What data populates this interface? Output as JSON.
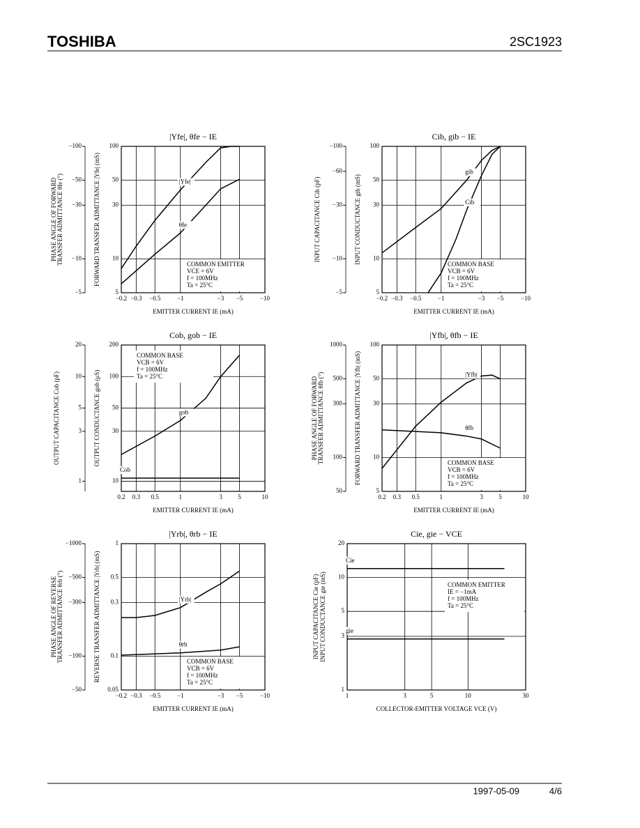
{
  "header": {
    "brand": "TOSHIBA",
    "part": "2SC1923"
  },
  "footer": {
    "date": "1997-05-09",
    "page": "4/6"
  },
  "chart_data": [
    {
      "type": "line",
      "title": "|Yfe|, θfe − IE",
      "xlabel": "EMITTER CURRENT IE (mA)",
      "ylabel": [
        "FORWARD TRANSFER ADMITTANCE |Yfe| (mS)"
      ],
      "y2label": [
        "PHASE ANGLE OF FORWARD",
        "TRANSFER ADMITTANCE θfe (°)"
      ],
      "log": true,
      "grid": true,
      "xlim": [
        -0.2,
        -10
      ],
      "xticks": [
        {
          "value": -0.2,
          "label": "−0.2"
        },
        {
          "value": -0.3,
          "label": "−0.3"
        },
        {
          "value": -0.5,
          "label": "−0.5"
        },
        {
          "value": -1,
          "label": "−1"
        },
        {
          "value": -3,
          "label": "−3"
        },
        {
          "value": -5,
          "label": "−5"
        },
        {
          "value": -10,
          "label": "−10"
        }
      ],
      "ylim": [
        5,
        100
      ],
      "yticks": [
        5,
        10,
        30,
        50,
        100
      ],
      "y2lim": [
        -5,
        -100
      ],
      "y2ticks": [
        {
          "value": -5,
          "label": "−5"
        },
        {
          "value": -10,
          "label": "−10"
        },
        {
          "value": -30,
          "label": "−30"
        },
        {
          "value": -50,
          "label": "−50"
        },
        {
          "value": -100,
          "label": "−100"
        }
      ],
      "notes": [
        "COMMON EMITTER",
        "VCE = 6V",
        "f = 100MHz",
        "Ta = 25°C"
      ],
      "series": [
        {
          "name": "|Yfe|",
          "color": "#000000",
          "x": [
            -0.2,
            -0.3,
            -0.5,
            -1,
            -2,
            -3,
            -4,
            -5
          ],
          "values": [
            8.2,
            13,
            22,
            41,
            72,
            97,
            100,
            100
          ]
        },
        {
          "name": "θfe",
          "color": "#000000",
          "axis": "y2",
          "x": [
            -0.2,
            -0.5,
            -1,
            -2,
            -3,
            -5
          ],
          "values": [
            -6,
            -11,
            -17,
            -30,
            -42,
            -51
          ]
        }
      ]
    },
    {
      "type": "line",
      "title": "Cib, gib − IE",
      "xlabel": "EMITTER CURRENT IE (mA)",
      "ylabel": [
        "INPUT CONDUCTANCE gib (mS)"
      ],
      "y2label": [
        "INPUT CAPACITANCE Cib (pF)"
      ],
      "log": true,
      "grid": true,
      "xlim": [
        -0.2,
        -10
      ],
      "xticks": [
        {
          "value": -0.2,
          "label": "−0.2"
        },
        {
          "value": -0.3,
          "label": "−0.3"
        },
        {
          "value": -0.5,
          "label": "−0.5"
        },
        {
          "value": -1,
          "label": "−1"
        },
        {
          "value": -3,
          "label": "−3"
        },
        {
          "value": -5,
          "label": "−5"
        },
        {
          "value": -10,
          "label": "−10"
        }
      ],
      "ylim": [
        5,
        100
      ],
      "yticks": [
        5,
        10,
        30,
        50,
        100
      ],
      "y2lim": [
        -5,
        -100
      ],
      "y2ticks": [
        {
          "value": -5,
          "label": "−5"
        },
        {
          "value": -10,
          "label": "−10"
        },
        {
          "value": -30,
          "label": "−30"
        },
        {
          "value": -60,
          "label": "−60"
        },
        {
          "value": -100,
          "label": "−100"
        }
      ],
      "notes": [
        "COMMON BASE",
        "VCB = 6V",
        "f = 100MHz",
        "Ta = 25°C"
      ],
      "series": [
        {
          "name": "gib",
          "color": "#000000",
          "x": [
            -0.2,
            -0.5,
            -1,
            -2,
            -3,
            -4,
            -5
          ],
          "values": [
            11.3,
            19,
            28,
            50,
            75,
            92,
            100
          ]
        },
        {
          "name": "Cib",
          "color": "#000000",
          "axis": "y2",
          "x": [
            -0.7,
            -1,
            -1.5,
            -2,
            -3,
            -4,
            -5
          ],
          "values": [
            -5,
            -7.5,
            -15,
            -27,
            -55,
            -85,
            -100
          ]
        }
      ]
    },
    {
      "type": "line",
      "title": "Cob, gob − IE",
      "xlabel": "EMITTER CURRENT IE (mA)",
      "ylabel": [
        "OUTPUT CONDUCTANCE gob (μS)"
      ],
      "y2label": [
        "OUTPUT CAPACITANCE Cob (pF)"
      ],
      "log": true,
      "grid": true,
      "xlim": [
        0.2,
        10
      ],
      "xticks": [
        0.2,
        0.3,
        0.5,
        1,
        3,
        5,
        10
      ],
      "ylim": [
        8,
        200
      ],
      "yticks": [
        10,
        30,
        50,
        100,
        200
      ],
      "y2lim": [
        0.8,
        20
      ],
      "y2ticks": [
        1,
        3,
        5,
        10,
        20
      ],
      "notes": [
        "COMMON BASE",
        "VCB = 6V",
        "f = 100MHz",
        "Ta = 25°C"
      ],
      "series": [
        {
          "name": "gob",
          "color": "#000000",
          "x": [
            0.2,
            0.5,
            1,
            2,
            3,
            5
          ],
          "values": [
            18,
            27,
            38,
            62,
            100,
            160
          ]
        },
        {
          "name": "Cob",
          "color": "#000000",
          "axis": "y2",
          "x": [
            0.2,
            5
          ],
          "values": [
            1.07,
            1.07
          ]
        }
      ]
    },
    {
      "type": "line",
      "title": "|Yfb|, θfb − IE",
      "xlabel": "EMITTER CURRENT IE (mA)",
      "ylabel": [
        "FORWARD TRANSFER ADMITTANCE |Yfb| (mS)"
      ],
      "y2label": [
        "PHASE ANGLE OF FORWARD",
        "TRANSFER ADMITTANCE θfb (°)"
      ],
      "log": true,
      "grid": true,
      "xlim": [
        0.2,
        10
      ],
      "xticks": [
        0.2,
        0.3,
        0.5,
        1,
        3,
        5,
        10
      ],
      "ylim": [
        5,
        100
      ],
      "yticks": [
        5,
        10,
        30,
        50,
        100
      ],
      "y2lim": [
        50,
        1000
      ],
      "y2ticks": [
        50,
        100,
        300,
        500,
        1000
      ],
      "notes": [
        "COMMON BASE",
        "VCB = 6V",
        "f = 100MHz",
        "Ta = 25°C"
      ],
      "series": [
        {
          "name": "|Yfb|",
          "color": "#000000",
          "x": [
            0.2,
            0.5,
            1,
            2,
            3,
            4,
            5
          ],
          "values": [
            8,
            19,
            31,
            46,
            53,
            54,
            50
          ]
        },
        {
          "name": "θfb",
          "color": "#000000",
          "axis": "y2",
          "x": [
            0.2,
            1,
            2,
            3,
            5
          ],
          "values": [
            176,
            166,
            155,
            146,
            121
          ]
        }
      ]
    },
    {
      "type": "line",
      "title": "|Yrb|, θrb − IE",
      "xlabel": "EMITTER CURRENT IE (mA)",
      "ylabel": [
        "REVERSE TRANSFER ADMITTANCE |Yrb| (mS)"
      ],
      "y2label": [
        "PHASE ANGLE OF REVERSE",
        "TRANSFER ADMITTANCE θrb (°)"
      ],
      "log": true,
      "grid": true,
      "xlim": [
        -0.2,
        -10
      ],
      "xticks": [
        {
          "value": -0.2,
          "label": "−0.2"
        },
        {
          "value": -0.3,
          "label": "−0.3"
        },
        {
          "value": -0.5,
          "label": "−0.5"
        },
        {
          "value": -1,
          "label": "−1"
        },
        {
          "value": -3,
          "label": "−3"
        },
        {
          "value": -5,
          "label": "−5"
        },
        {
          "value": -10,
          "label": "−10"
        }
      ],
      "ylim": [
        0.05,
        1
      ],
      "yticks": [
        0.05,
        0.1,
        0.3,
        0.5,
        1
      ],
      "y2lim": [
        -50,
        -1000
      ],
      "y2ticks": [
        {
          "value": -50,
          "label": "−50"
        },
        {
          "value": -100,
          "label": "−100"
        },
        {
          "value": -300,
          "label": "−300"
        },
        {
          "value": -500,
          "label": "−500"
        },
        {
          "value": -1000,
          "label": "−1000"
        }
      ],
      "notes": [
        "COMMON BASE",
        "VCB = 6V",
        "f = 100MHz",
        "Ta = 25°C"
      ],
      "series": [
        {
          "name": "|Yrb|",
          "color": "#000000",
          "x": [
            -0.2,
            -0.3,
            -0.5,
            -1,
            -2,
            -3,
            -5
          ],
          "values": [
            0.22,
            0.22,
            0.23,
            0.27,
            0.37,
            0.44,
            0.57
          ]
        },
        {
          "name": "θrb",
          "color": "#000000",
          "axis": "y2",
          "x": [
            -0.2,
            -1,
            -3,
            -5
          ],
          "values": [
            -102,
            -107,
            -113,
            -121
          ]
        }
      ]
    },
    {
      "type": "line",
      "title": "Cie, gie − VCE",
      "xlabel": "COLLECTOR-EMITTER VOLTAGE VCE (V)",
      "ylabel": [
        "INPUT CAPACITANCE Cie (pF)",
        "INPUT CONDUCTANCE gie (mS)"
      ],
      "log": true,
      "grid": true,
      "xlim": [
        1,
        30
      ],
      "xticks": [
        1,
        3,
        5,
        10,
        30
      ],
      "ylim": [
        1,
        20
      ],
      "yticks": [
        1,
        3,
        5,
        10,
        20
      ],
      "notes": [
        "COMMON EMITTER",
        "IE = −1mA",
        "f = 100MHz",
        "Ta = 25°C"
      ],
      "series": [
        {
          "name": "Cie",
          "color": "#000000",
          "x": [
            1,
            20
          ],
          "values": [
            12,
            12
          ]
        },
        {
          "name": "gie",
          "color": "#000000",
          "x": [
            1,
            20
          ],
          "values": [
            2.84,
            2.84
          ]
        }
      ]
    }
  ]
}
